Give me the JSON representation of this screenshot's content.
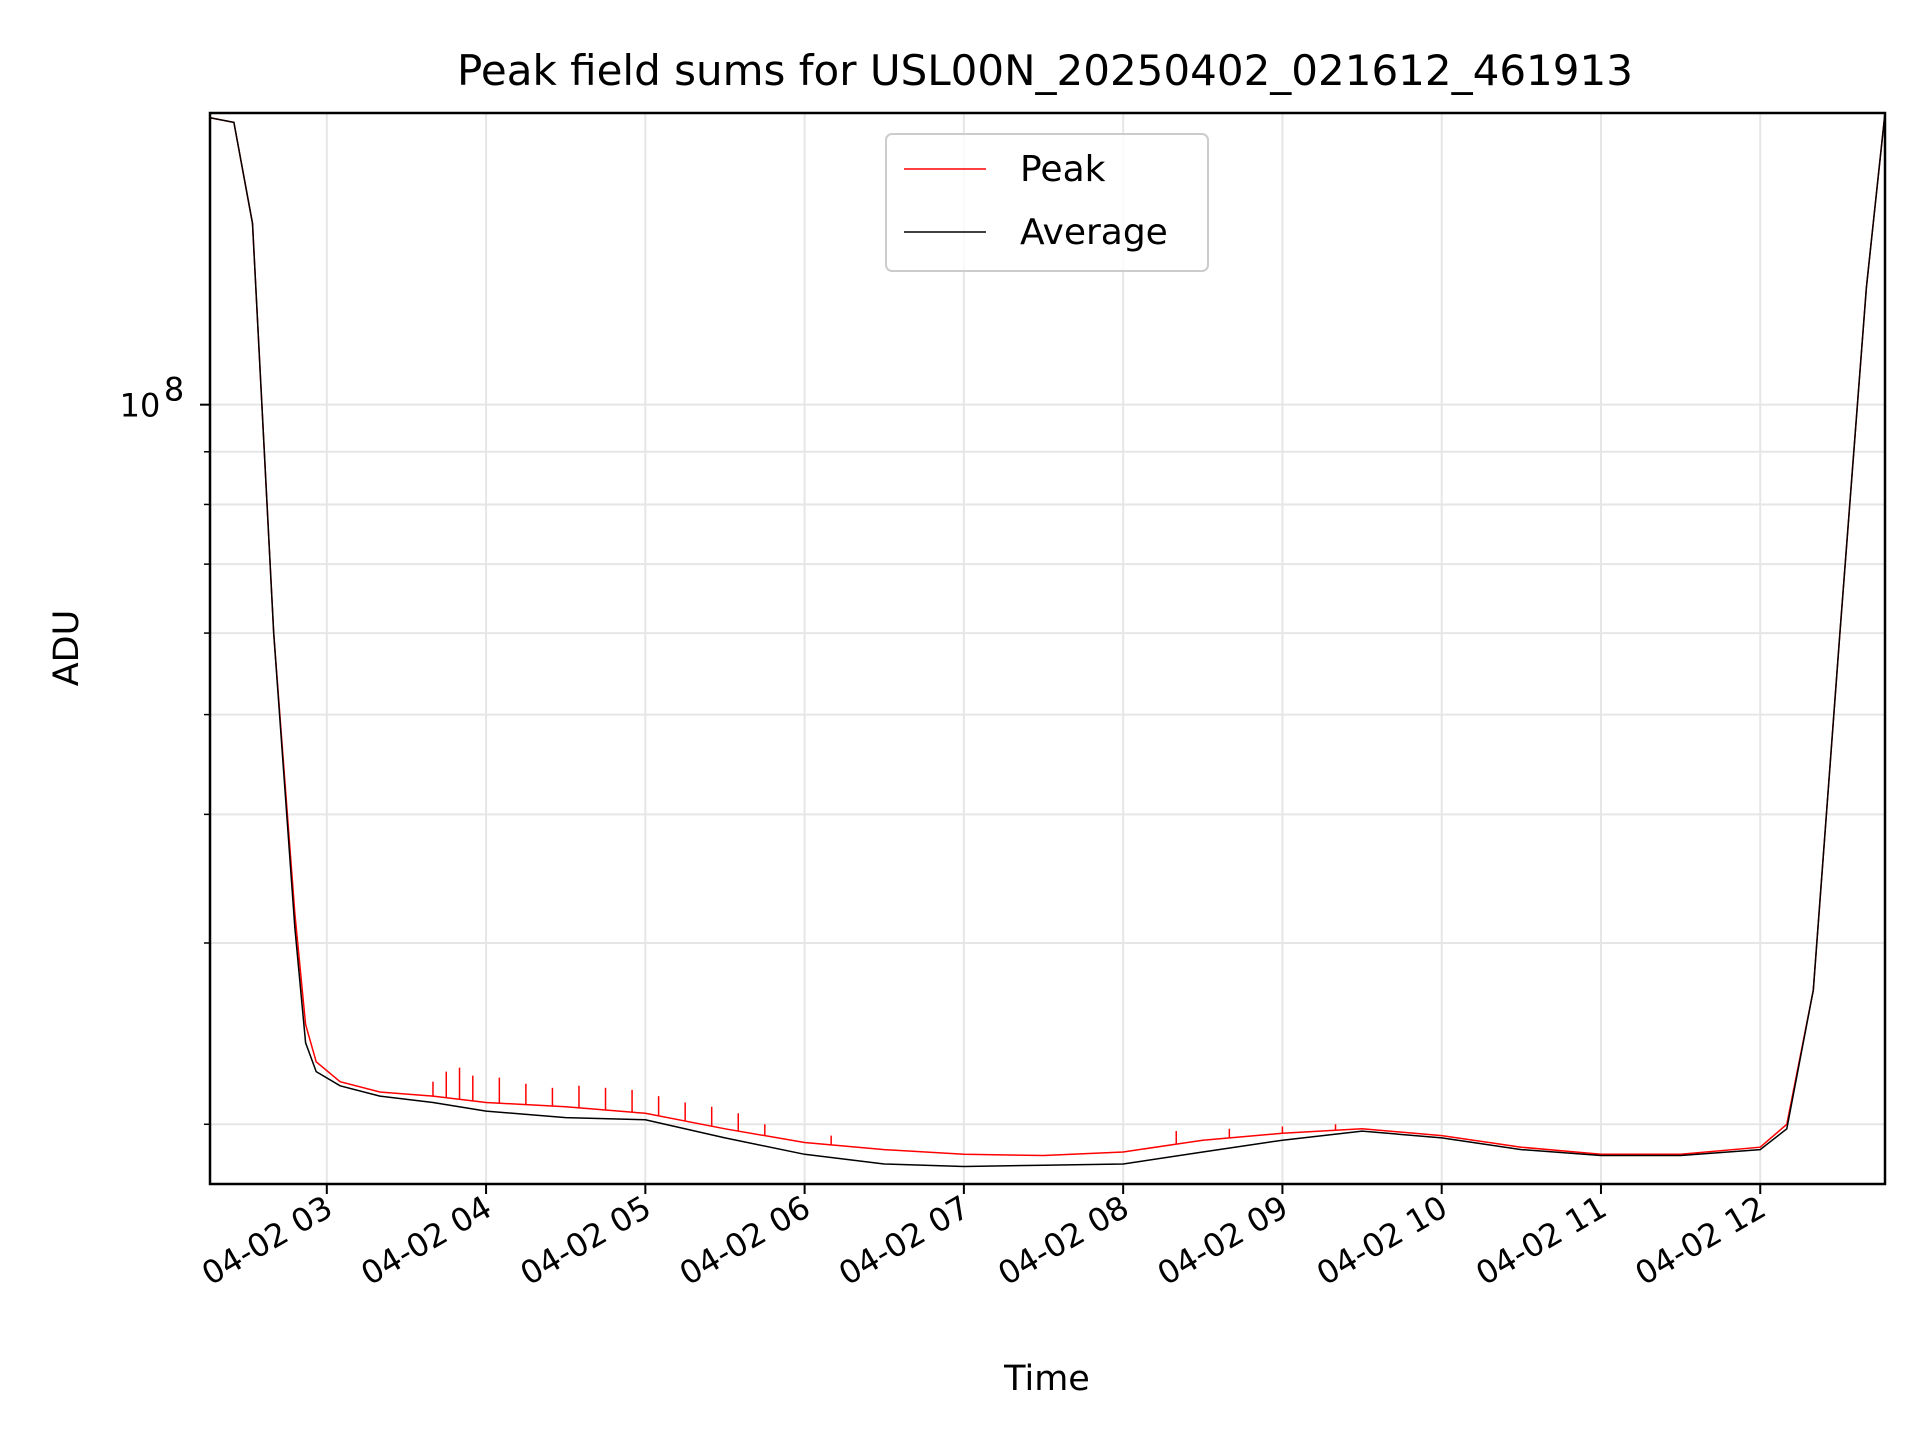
{
  "chart_data": {
    "type": "line",
    "title": "Peak field sums for USL00N_20250402_021612_461913",
    "xlabel": "Time",
    "ylabel": "ADU",
    "yscale": "log",
    "grid": true,
    "legend_placement": "upper-center",
    "xlim": [
      "2025-04-02T02:16",
      "2025-04-02T12:47"
    ],
    "ylim": [
      17500000,
      192000000
    ],
    "x_ticks": [
      {
        "label": "04-02 03",
        "value": "2025-04-02T03:00"
      },
      {
        "label": "04-02 04",
        "value": "2025-04-02T04:00"
      },
      {
        "label": "04-02 05",
        "value": "2025-04-02T05:00"
      },
      {
        "label": "04-02 06",
        "value": "2025-04-02T06:00"
      },
      {
        "label": "04-02 07",
        "value": "2025-04-02T07:00"
      },
      {
        "label": "04-02 08",
        "value": "2025-04-02T08:00"
      },
      {
        "label": "04-02 09",
        "value": "2025-04-02T09:00"
      },
      {
        "label": "04-02 10",
        "value": "2025-04-02T10:00"
      },
      {
        "label": "04-02 11",
        "value": "2025-04-02T11:00"
      },
      {
        "label": "04-02 12",
        "value": "2025-04-02T12:00"
      }
    ],
    "y_major_ticks": [
      {
        "value": 100000000,
        "base": "10",
        "exponent": "8"
      }
    ],
    "y_minor_ticks": [
      20000000,
      30000000,
      40000000,
      50000000,
      60000000,
      70000000,
      80000000,
      90000000,
      200000000
    ],
    "series": [
      {
        "name": "Peak",
        "color": "#ff0000",
        "x": [
          "2025-04-02T02:16",
          "2025-04-02T02:25",
          "2025-04-02T02:32",
          "2025-04-02T02:40",
          "2025-04-02T02:48",
          "2025-04-02T02:52",
          "2025-04-02T02:56",
          "2025-04-02T03:05",
          "2025-04-02T03:20",
          "2025-04-02T03:40",
          "2025-04-02T04:00",
          "2025-04-02T04:30",
          "2025-04-02T05:00",
          "2025-04-02T05:30",
          "2025-04-02T06:00",
          "2025-04-02T06:30",
          "2025-04-02T07:00",
          "2025-04-02T07:30",
          "2025-04-02T08:00",
          "2025-04-02T08:30",
          "2025-04-02T09:00",
          "2025-04-02T09:30",
          "2025-04-02T10:00",
          "2025-04-02T10:30",
          "2025-04-02T11:00",
          "2025-04-02T11:30",
          "2025-04-02T12:00",
          "2025-04-02T12:10",
          "2025-04-02T12:20",
          "2025-04-02T12:30",
          "2025-04-02T12:40",
          "2025-04-02T12:47"
        ],
        "y": [
          190000000,
          188000000,
          150000000,
          60000000,
          32000000,
          25000000,
          23000000,
          22000000,
          21500000,
          21300000,
          21000000,
          20800000,
          20500000,
          19800000,
          19200000,
          18900000,
          18700000,
          18650000,
          18800000,
          19300000,
          19600000,
          19800000,
          19500000,
          19000000,
          18700000,
          18700000,
          19000000,
          20000000,
          27000000,
          60000000,
          130000000,
          192000000
        ],
        "spikes": [
          [
            "2025-04-02T03:40",
            22000000
          ],
          [
            "2025-04-02T03:45",
            22500000
          ],
          [
            "2025-04-02T03:50",
            22700000
          ],
          [
            "2025-04-02T03:55",
            22300000
          ],
          [
            "2025-04-02T04:05",
            22200000
          ],
          [
            "2025-04-02T04:15",
            21900000
          ],
          [
            "2025-04-02T04:25",
            21700000
          ],
          [
            "2025-04-02T04:35",
            21800000
          ],
          [
            "2025-04-02T04:45",
            21700000
          ],
          [
            "2025-04-02T04:55",
            21600000
          ],
          [
            "2025-04-02T05:05",
            21300000
          ],
          [
            "2025-04-02T05:15",
            21000000
          ],
          [
            "2025-04-02T05:25",
            20800000
          ],
          [
            "2025-04-02T05:35",
            20500000
          ],
          [
            "2025-04-02T05:45",
            20000000
          ],
          [
            "2025-04-02T06:10",
            19500000
          ],
          [
            "2025-04-02T08:20",
            19700000
          ],
          [
            "2025-04-02T08:40",
            19800000
          ],
          [
            "2025-04-02T09:00",
            19900000
          ],
          [
            "2025-04-02T09:20",
            20000000
          ]
        ]
      },
      {
        "name": "Average",
        "color": "#000000",
        "x": [
          "2025-04-02T02:16",
          "2025-04-02T02:25",
          "2025-04-02T02:32",
          "2025-04-02T02:40",
          "2025-04-02T02:48",
          "2025-04-02T02:52",
          "2025-04-02T02:56",
          "2025-04-02T03:05",
          "2025-04-02T03:20",
          "2025-04-02T03:40",
          "2025-04-02T04:00",
          "2025-04-02T04:30",
          "2025-04-02T05:00",
          "2025-04-02T05:30",
          "2025-04-02T06:00",
          "2025-04-02T06:30",
          "2025-04-02T07:00",
          "2025-04-02T07:30",
          "2025-04-02T08:00",
          "2025-04-02T08:30",
          "2025-04-02T09:00",
          "2025-04-02T09:30",
          "2025-04-02T10:00",
          "2025-04-02T10:30",
          "2025-04-02T11:00",
          "2025-04-02T11:30",
          "2025-04-02T12:00",
          "2025-04-02T12:10",
          "2025-04-02T12:20",
          "2025-04-02T12:30",
          "2025-04-02T12:40",
          "2025-04-02T12:47"
        ],
        "y": [
          190000000,
          188000000,
          150000000,
          60000000,
          31000000,
          24000000,
          22500000,
          21800000,
          21300000,
          21000000,
          20600000,
          20300000,
          20200000,
          19400000,
          18700000,
          18300000,
          18200000,
          18250000,
          18300000,
          18800000,
          19300000,
          19700000,
          19400000,
          18900000,
          18650000,
          18650000,
          18900000,
          19800000,
          27000000,
          60000000,
          130000000,
          192000000
        ]
      }
    ]
  }
}
